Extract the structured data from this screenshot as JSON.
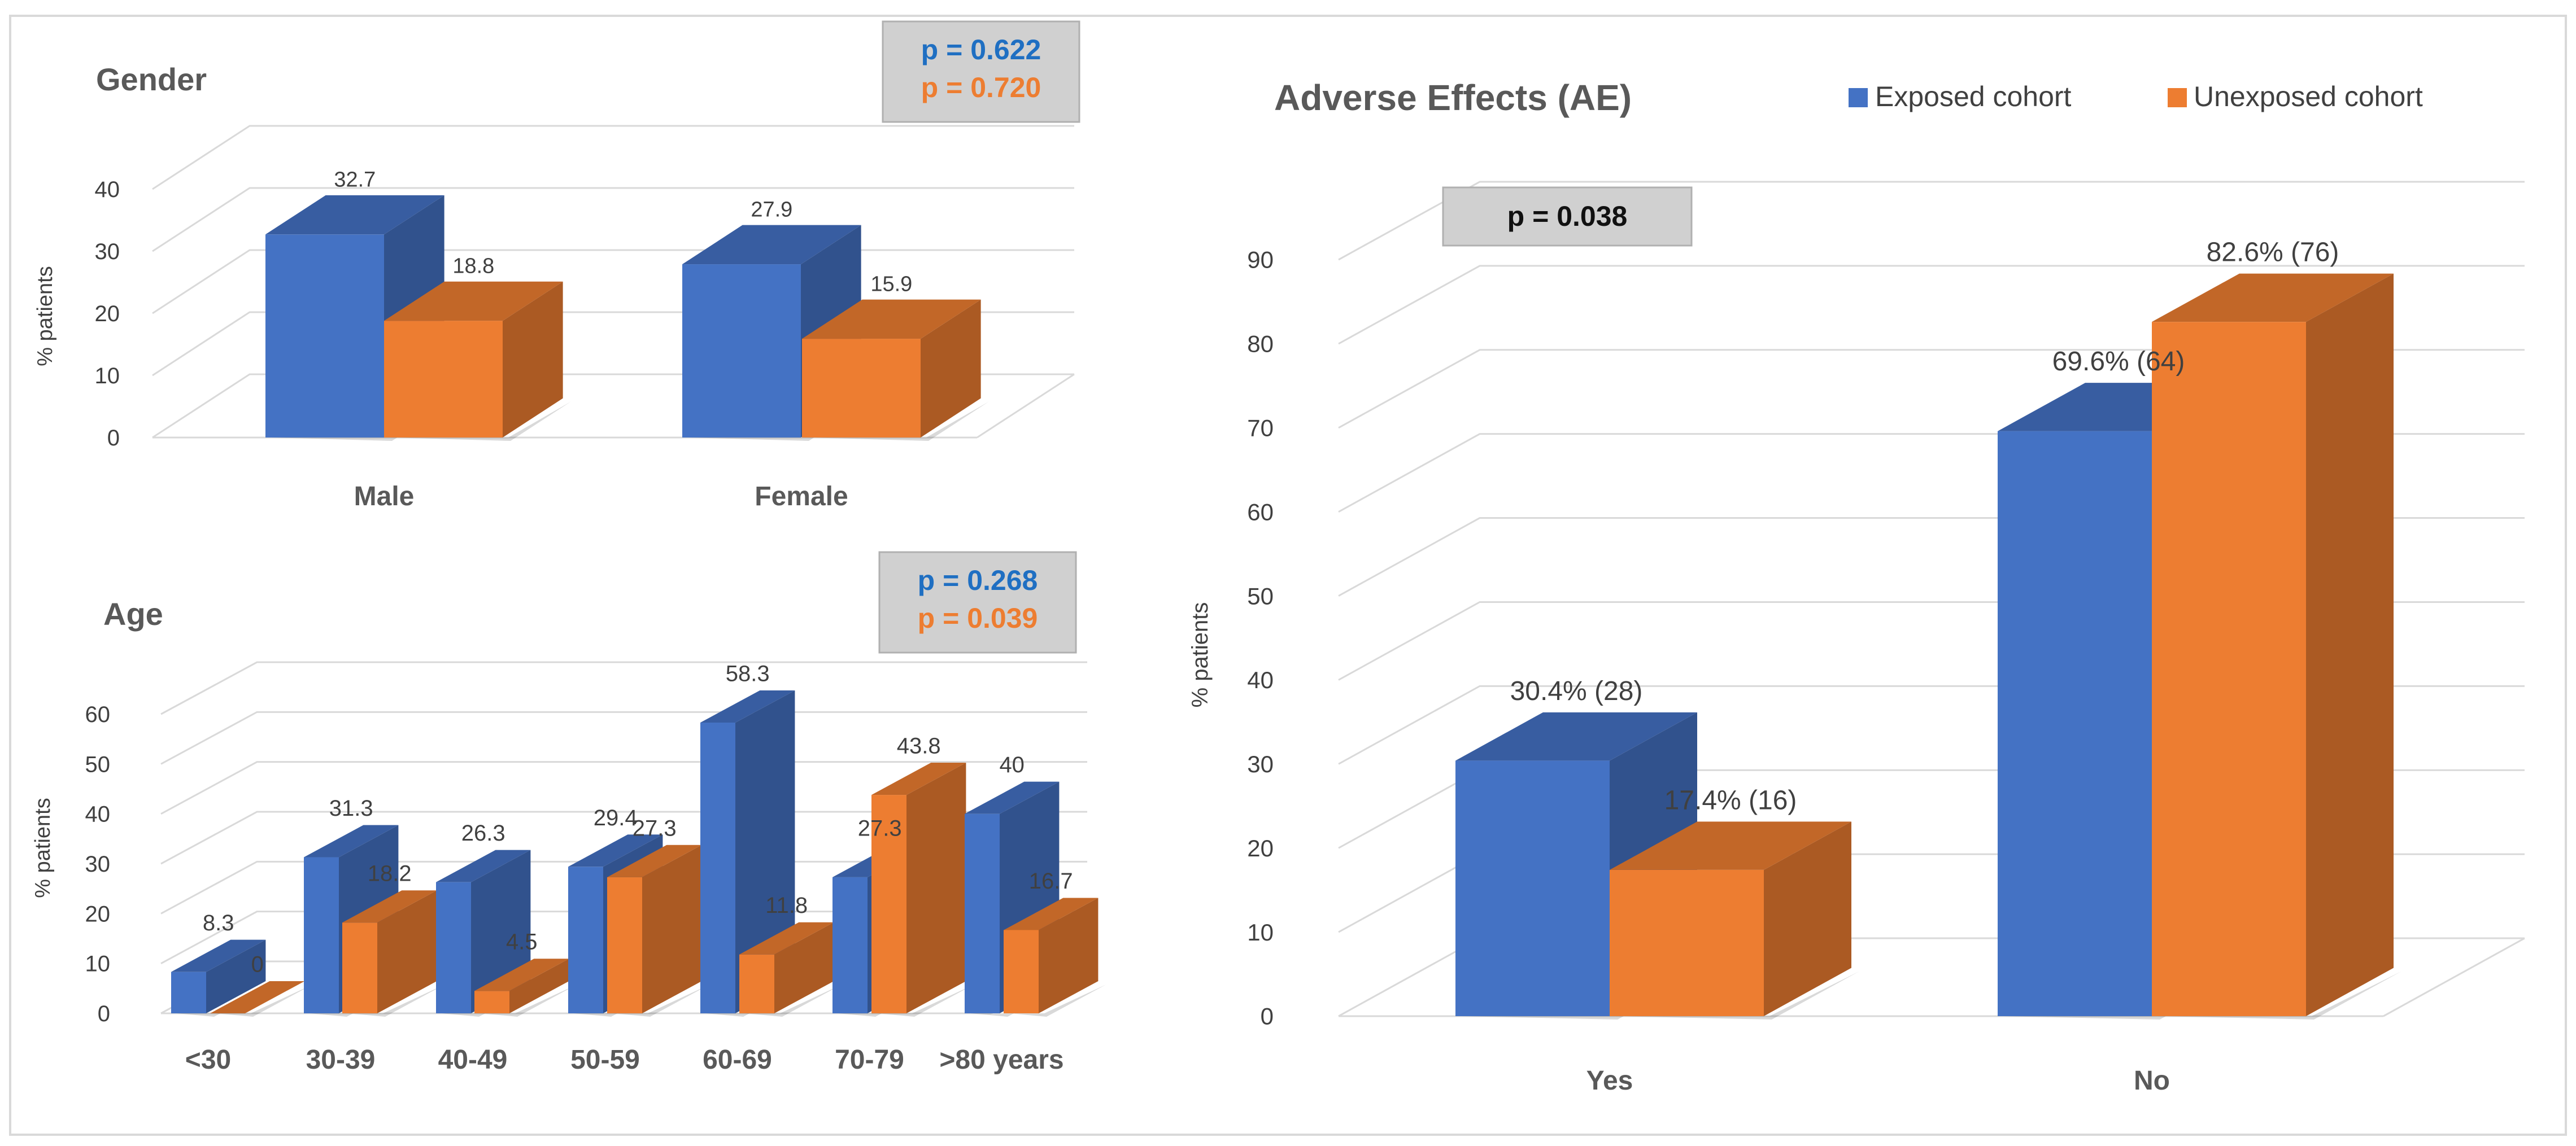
{
  "colors": {
    "exposed": "#4472C4",
    "unexposed": "#ED7D31",
    "p_exposed_text": "#1F6FC2",
    "p_unexposed_text": "#ED7D31",
    "pbox_fill": "#D0D0D0",
    "grid": "#D9D9D9",
    "axis_text": "#404040"
  },
  "legend": {
    "exposed": "Exposed cohort",
    "unexposed": "Unexposed cohort"
  },
  "pvalues": {
    "gender_exposed": "p = 0.622",
    "gender_unexposed": "p = 0.720",
    "age_exposed": "p = 0.268",
    "age_unexposed": "p = 0.039",
    "ae": "p = 0.038"
  },
  "chart_data": [
    {
      "id": "gender",
      "type": "bar",
      "title": "Gender",
      "ylabel": "% patients",
      "xlabel": "",
      "ylim": [
        0,
        40
      ],
      "yticks": [
        0,
        10,
        20,
        30,
        40
      ],
      "categories": [
        "Male",
        "Female"
      ],
      "series": [
        {
          "name": "Exposed cohort",
          "values": [
            32.7,
            27.9
          ],
          "labels": [
            "32.7",
            "27.9"
          ]
        },
        {
          "name": "Unexposed cohort",
          "values": [
            18.8,
            15.9
          ],
          "labels": [
            "18.8",
            "15.9"
          ]
        }
      ]
    },
    {
      "id": "age",
      "type": "bar",
      "title": "Age",
      "ylabel": "% patients",
      "xlabel": "",
      "ylim": [
        0,
        60
      ],
      "yticks": [
        0,
        10,
        20,
        30,
        40,
        50,
        60
      ],
      "categories": [
        "<30",
        "30-39",
        "40-49",
        "50-59",
        "60-69",
        "70-79",
        ">80 years"
      ],
      "series": [
        {
          "name": "Exposed cohort",
          "values": [
            8.3,
            31.3,
            26.3,
            29.4,
            58.3,
            27.3,
            40
          ],
          "labels": [
            "8.3",
            "31.3",
            "26.3",
            "29.4",
            "58.3",
            "27.3",
            "40"
          ]
        },
        {
          "name": "Unexposed cohort",
          "values": [
            0,
            18.2,
            4.5,
            27.3,
            11.8,
            43.8,
            16.7
          ],
          "labels": [
            "0",
            "18.2",
            "4.5",
            "27.3",
            "11.8",
            "43.8",
            "16.7"
          ]
        }
      ]
    },
    {
      "id": "ae",
      "type": "bar",
      "title": "Adverse Effects (AE)",
      "ylabel": "% patients",
      "xlabel": "",
      "ylim": [
        0,
        90
      ],
      "yticks": [
        0,
        10,
        20,
        30,
        40,
        50,
        60,
        70,
        80,
        90
      ],
      "categories": [
        "Yes",
        "No"
      ],
      "series": [
        {
          "name": "Exposed cohort",
          "values": [
            30.4,
            69.6
          ],
          "labels": [
            "30.4% (28)",
            "69.6% (64)"
          ]
        },
        {
          "name": "Unexposed cohort",
          "values": [
            17.4,
            82.6
          ],
          "labels": [
            "17.4% (16)",
            "82.6% (76)"
          ]
        }
      ]
    }
  ]
}
